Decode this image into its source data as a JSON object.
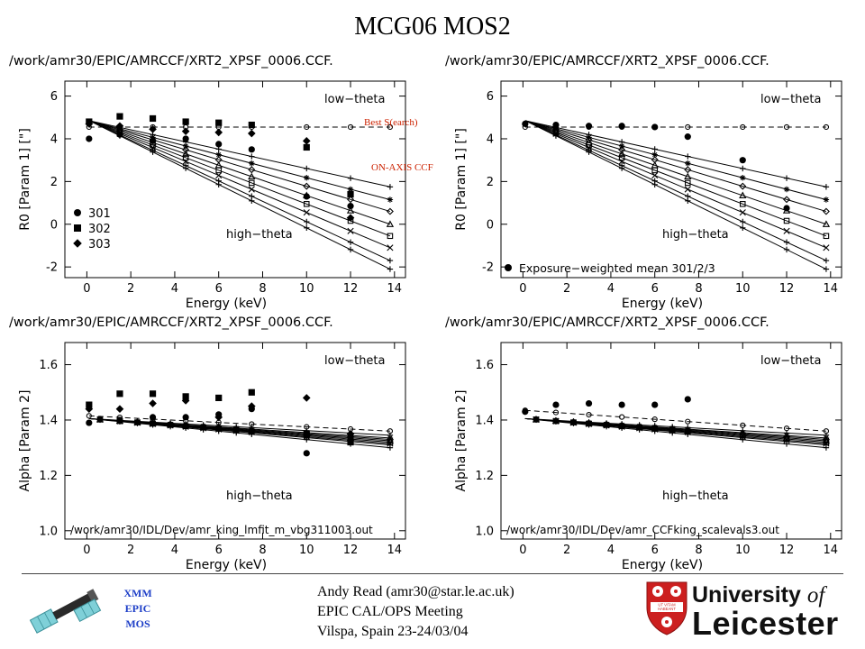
{
  "page": {
    "title": "MCG06  MOS2"
  },
  "panels": [
    {
      "path": "/work/amr30/EPIC/AMRCCF/XRT2_XPSF_0006.CCF.",
      "param": "R0",
      "ylabel": "R0  [Param 1] [\"]",
      "low_label": "low−theta",
      "high_label": "high−theta",
      "legend_type": "obs",
      "legend": [
        {
          "name": "301",
          "marker": "circle"
        },
        {
          "name": "302",
          "marker": "square"
        },
        {
          "name": "303",
          "marker": "diamond"
        }
      ],
      "footer_label": ""
    },
    {
      "path": "/work/amr30/EPIC/AMRCCF/XRT2_XPSF_0006.CCF.",
      "param": "R0",
      "ylabel": "R0  [Param 1] [\"]",
      "low_label": "low−theta",
      "high_label": "high−theta",
      "legend_type": "mean",
      "legend": [
        {
          "name": "Exposure−weighted mean 301/2/3",
          "marker": "circle"
        }
      ],
      "footer_label": ""
    },
    {
      "path": "/work/amr30/EPIC/AMRCCF/XRT2_XPSF_0006.CCF.",
      "param": "alpha",
      "ylabel": "Alpha  [Param 2]",
      "low_label": "low−theta",
      "high_label": "high−theta",
      "legend_type": "none",
      "legend": [],
      "footer_label": "/work/amr30/IDL/Dev/amr_king_lmfit_m_vbg311003.out"
    },
    {
      "path": "/work/amr30/EPIC/AMRCCF/XRT2_XPSF_0006.CCF.",
      "param": "alpha",
      "ylabel": "Alpha  [Param 2]",
      "low_label": "low−theta",
      "high_label": "high−theta",
      "legend_type": "none",
      "legend": [],
      "footer_label": "/work/amr30/IDL/Dev/amr_CCFking_scalevals3.out"
    }
  ],
  "annotations": {
    "best_search": "Best S(earch)",
    "on_axis_ccf": "ON-AXIS  CCF",
    "color": "#cc2200"
  },
  "footer": {
    "xmm_lines": [
      "XMM",
      "EPIC",
      "MOS"
    ],
    "xmm_color": "#1f40c8",
    "author": "Andy Read (amr30@star.le.ac.uk)",
    "meeting": "EPIC CAL/OPS Meeting",
    "venue": "Vilspa, Spain 23-24/03/04",
    "university_line1": "University",
    "university_of": "of",
    "university_line2": "Leicester",
    "motto": "UT VITAM HABEANT",
    "brand_red": "#cc1f1f"
  },
  "chart_data": [
    {
      "type": "scatter",
      "title": "",
      "xlabel": "Energy (keV)",
      "ylabel": "R0  [Param 1] [\"]",
      "xlim": [
        -1,
        14.5
      ],
      "ylim": [
        -2.5,
        6.7
      ],
      "xticks": [
        0,
        2,
        4,
        6,
        8,
        10,
        12,
        14
      ],
      "yticks": [
        -2,
        0,
        2,
        4,
        6
      ],
      "reference": {
        "name": "on-axis",
        "value": 4.55,
        "style": "dashed",
        "marker": "open-circle"
      },
      "model_lines": {
        "e_start": 0.1,
        "e_end": 13.8,
        "y_start": 4.85,
        "y_end": [
          1.75,
          1.15,
          0.6,
          0.0,
          -0.55,
          -1.1,
          -1.7,
          -2.1
        ],
        "markers": [
          "plus",
          "star",
          "diamond-open",
          "triangle",
          "square-open",
          "x",
          "plus",
          "plus"
        ],
        "marker_energies": [
          1.5,
          3,
          4.5,
          6,
          7.5,
          10,
          12,
          13.8
        ]
      },
      "series": [
        {
          "name": "301",
          "marker": "circle",
          "x": [
            0.1,
            1.5,
            3,
            4.5,
            6,
            7.5,
            10,
            12
          ],
          "y": [
            4.0,
            4.2,
            3.9,
            4.0,
            3.75,
            3.5,
            1.3,
            0.85
          ]
        },
        {
          "name": "302",
          "marker": "square",
          "x": [
            0.1,
            1.5,
            3,
            4.5,
            6,
            7.5,
            10,
            12
          ],
          "y": [
            4.8,
            5.05,
            4.95,
            4.8,
            4.75,
            4.65,
            3.6,
            1.4
          ]
        },
        {
          "name": "303",
          "marker": "diamond",
          "x": [
            0.1,
            1.5,
            3,
            4.5,
            6,
            7.5,
            10,
            12
          ],
          "y": [
            4.7,
            4.6,
            4.45,
            4.35,
            4.3,
            4.25,
            3.9,
            0.3
          ]
        }
      ]
    },
    {
      "type": "scatter",
      "title": "",
      "xlabel": "Energy (keV)",
      "ylabel": "R0  [Param 1] [\"]",
      "xlim": [
        -1,
        14.5
      ],
      "ylim": [
        -2.5,
        6.7
      ],
      "xticks": [
        0,
        2,
        4,
        6,
        8,
        10,
        12,
        14
      ],
      "yticks": [
        -2,
        0,
        2,
        4,
        6
      ],
      "reference": {
        "name": "on-axis",
        "value": 4.55,
        "style": "dashed",
        "marker": "open-circle"
      },
      "model_lines": {
        "e_start": 0.1,
        "e_end": 13.8,
        "y_start": 4.85,
        "y_end": [
          1.75,
          1.15,
          0.6,
          0.0,
          -0.55,
          -1.1,
          -1.7,
          -2.1
        ],
        "markers": [
          "plus",
          "star",
          "diamond-open",
          "triangle",
          "square-open",
          "x",
          "plus",
          "plus"
        ],
        "marker_energies": [
          1.5,
          3,
          4.5,
          6,
          7.5,
          10,
          12,
          13.8
        ]
      },
      "series": [
        {
          "name": "Exposure−weighted mean 301/2/3",
          "marker": "circle",
          "x": [
            0.1,
            1.5,
            3,
            4.5,
            6,
            7.5,
            10,
            12
          ],
          "y": [
            4.7,
            4.65,
            4.6,
            4.6,
            4.55,
            4.1,
            3.0,
            0.75
          ]
        }
      ]
    },
    {
      "type": "scatter",
      "title": "",
      "xlabel": "Energy (keV)",
      "ylabel": "Alpha  [Param 2]",
      "xlim": [
        -1,
        14.5
      ],
      "ylim": [
        0.97,
        1.68
      ],
      "xticks": [
        0,
        2,
        4,
        6,
        8,
        10,
        12,
        14
      ],
      "yticks": [
        1.0,
        1.2,
        1.4,
        1.6
      ],
      "reference": {
        "name": "on-axis",
        "value_start": 1.415,
        "value_end": 1.36,
        "style": "dashed",
        "marker": "open-circle"
      },
      "model_lines": {
        "e_start": 0.1,
        "e_end": 13.8,
        "y_start": 1.405,
        "y_end": [
          1.345,
          1.335,
          1.33,
          1.325,
          1.32,
          1.315,
          1.31,
          1.3
        ],
        "markers": [
          "plus",
          "star",
          "diamond-open",
          "triangle",
          "square-open",
          "x",
          "plus",
          "plus"
        ],
        "marker_energies": [
          0.6,
          1.5,
          2.3,
          3,
          3.8,
          4.5,
          5.3,
          6,
          6.8,
          7.5,
          10,
          12,
          13.8
        ]
      },
      "series": [
        {
          "name": "301",
          "marker": "circle",
          "x": [
            0.1,
            1.5,
            3,
            4.5,
            6,
            7.5,
            10,
            12
          ],
          "y": [
            1.39,
            1.4,
            1.41,
            1.41,
            1.42,
            1.44,
            1.28,
            1.33
          ]
        },
        {
          "name": "302",
          "marker": "square",
          "x": [
            0.1,
            1.5,
            3,
            4.5,
            6,
            7.5,
            10,
            12
          ],
          "y": [
            1.455,
            1.495,
            1.495,
            1.485,
            1.48,
            1.5,
            1.35,
            1.32
          ]
        },
        {
          "name": "303",
          "marker": "diamond",
          "x": [
            0.1,
            1.5,
            3,
            4.5,
            6,
            7.5,
            10,
            12
          ],
          "y": [
            1.44,
            1.44,
            1.46,
            1.47,
            1.41,
            1.45,
            1.48,
            1.35
          ]
        }
      ]
    },
    {
      "type": "scatter",
      "title": "",
      "xlabel": "Energy (keV)",
      "ylabel": "Alpha  [Param 2]",
      "xlim": [
        -1,
        14.5
      ],
      "ylim": [
        0.97,
        1.68
      ],
      "xticks": [
        0,
        2,
        4,
        6,
        8,
        10,
        12,
        14
      ],
      "yticks": [
        1.0,
        1.2,
        1.4,
        1.6
      ],
      "reference": {
        "name": "on-axis",
        "value_start": 1.435,
        "value_end": 1.36,
        "style": "dashed",
        "marker": "open-circle"
      },
      "model_lines": {
        "e_start": 0.1,
        "e_end": 13.8,
        "y_start": 1.405,
        "y_end": [
          1.345,
          1.335,
          1.33,
          1.325,
          1.32,
          1.315,
          1.31,
          1.3
        ],
        "markers": [
          "plus",
          "star",
          "diamond-open",
          "triangle",
          "square-open",
          "x",
          "plus",
          "plus"
        ],
        "marker_energies": [
          0.6,
          1.5,
          2.3,
          3,
          3.8,
          4.5,
          5.3,
          6,
          6.8,
          7.5,
          10,
          12,
          13.8
        ]
      },
      "series": [
        {
          "name": "mean",
          "marker": "circle",
          "x": [
            0.1,
            1.5,
            3,
            4.5,
            6,
            7.5
          ],
          "y": [
            1.43,
            1.455,
            1.46,
            1.455,
            1.455,
            1.475
          ]
        }
      ]
    }
  ]
}
